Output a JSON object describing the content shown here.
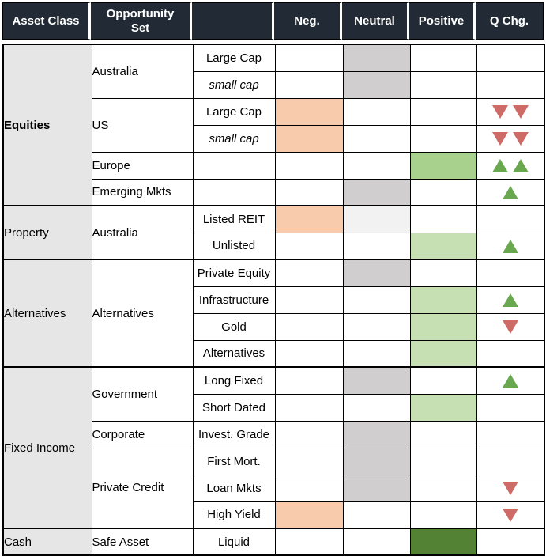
{
  "header": {
    "columns": [
      "Asset Class",
      "Opportunity Set",
      "",
      "Neg.",
      "Neutral",
      "Positive",
      "Q Chg."
    ]
  },
  "colors": {
    "header_bg": "#222B35",
    "header_text": "#FFFFFF",
    "asset_col_bg": "#E7E6E6",
    "grid_line": "#000000",
    "fills": {
      "orange": "#F8CBAD",
      "gray": "#D0CECE",
      "gray_light": "#F2F2F2",
      "green_light": "#C6E0B4",
      "green_mid": "#A9D18E",
      "green_dark": "#548235"
    },
    "arrow_up": "#6AA84F",
    "arrow_down": "#CE6B67"
  },
  "groups": [
    {
      "name": "Equities",
      "bold": true,
      "opportunities": [
        {
          "name": "Australia",
          "rows": [
            {
              "label": "Large Cap",
              "italic": false,
              "neg": null,
              "neutral": "gray",
              "positive": null,
              "qchg": null
            },
            {
              "label": "small cap",
              "italic": true,
              "neg": null,
              "neutral": "gray",
              "positive": null,
              "qchg": null
            }
          ]
        },
        {
          "name": "US",
          "rows": [
            {
              "label": "Large Cap",
              "italic": false,
              "neg": "orange",
              "neutral": null,
              "positive": null,
              "qchg": "down2"
            },
            {
              "label": "small cap",
              "italic": true,
              "neg": "orange",
              "neutral": null,
              "positive": null,
              "qchg": "down2"
            }
          ]
        },
        {
          "name": "Europe",
          "rows": [
            {
              "label": "",
              "italic": false,
              "neg": null,
              "neutral": null,
              "positive": "green_mid",
              "qchg": "up2"
            }
          ]
        },
        {
          "name": "Emerging Mkts",
          "rows": [
            {
              "label": "",
              "italic": false,
              "neg": null,
              "neutral": "gray",
              "positive": null,
              "qchg": "up1"
            }
          ]
        }
      ]
    },
    {
      "name": "Property",
      "bold": false,
      "opportunities": [
        {
          "name": "Australia",
          "rows": [
            {
              "label": "Listed REIT",
              "italic": false,
              "neg": "orange",
              "neutral": "gray_light",
              "positive": null,
              "qchg": null
            },
            {
              "label": "Unlisted",
              "italic": false,
              "neg": null,
              "neutral": null,
              "positive": "green_light",
              "qchg": "up1"
            }
          ]
        }
      ]
    },
    {
      "name": "Alternatives",
      "bold": false,
      "opportunities": [
        {
          "name": "Alternatives",
          "rows": [
            {
              "label": "Private Equity",
              "italic": false,
              "neg": null,
              "neutral": "gray",
              "positive": null,
              "qchg": null
            },
            {
              "label": "Infrastructure",
              "italic": false,
              "neg": null,
              "neutral": null,
              "positive": "green_light",
              "qchg": "up1"
            },
            {
              "label": "Gold",
              "italic": false,
              "neg": null,
              "neutral": null,
              "positive": "green_light",
              "qchg": "down1"
            },
            {
              "label": "Alternatives",
              "italic": false,
              "neg": null,
              "neutral": null,
              "positive": "green_light",
              "qchg": null
            }
          ]
        }
      ]
    },
    {
      "name": "Fixed Income",
      "bold": false,
      "opportunities": [
        {
          "name": "Government",
          "rows": [
            {
              "label": "Long Fixed",
              "italic": false,
              "neg": null,
              "neutral": "gray",
              "positive": null,
              "qchg": "up1"
            },
            {
              "label": "Short Dated",
              "italic": false,
              "neg": null,
              "neutral": null,
              "positive": "green_light",
              "qchg": null
            }
          ]
        },
        {
          "name": "Corporate",
          "rows": [
            {
              "label": "Invest. Grade",
              "italic": false,
              "neg": null,
              "neutral": "gray",
              "positive": null,
              "qchg": null
            }
          ]
        },
        {
          "name": "Private Credit",
          "rows": [
            {
              "label": "First Mort.",
              "italic": false,
              "neg": null,
              "neutral": "gray",
              "positive": null,
              "qchg": null
            },
            {
              "label": "Loan Mkts",
              "italic": false,
              "neg": null,
              "neutral": "gray",
              "positive": null,
              "qchg": "down1"
            },
            {
              "label": "High Yield",
              "italic": false,
              "neg": "orange",
              "neutral": null,
              "positive": null,
              "qchg": "down1"
            }
          ]
        }
      ]
    },
    {
      "name": "Cash",
      "bold": false,
      "opportunities": [
        {
          "name": "Safe Asset",
          "rows": [
            {
              "label": "Liquid",
              "italic": false,
              "neg": null,
              "neutral": null,
              "positive": "green_dark",
              "qchg": null
            }
          ]
        }
      ]
    }
  ]
}
